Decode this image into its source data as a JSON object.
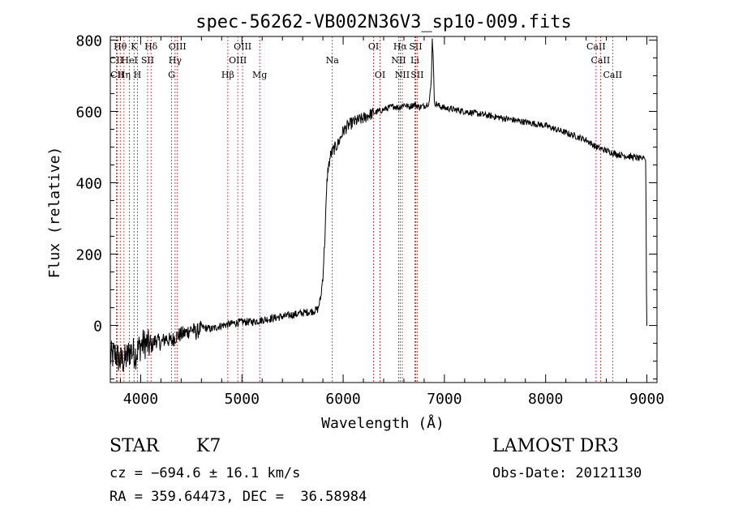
{
  "chart_data": {
    "type": "line",
    "title": "spec-56262-VB002N36V3_sp10-009.fits",
    "xlabel": "Wavelength (Å)",
    "ylabel": "Flux (relative)",
    "xlim": [
      3700,
      9100
    ],
    "ylim": [
      -160,
      810
    ],
    "xticks": [
      4000,
      5000,
      6000,
      7000,
      8000,
      9000
    ],
    "yticks": [
      0,
      200,
      400,
      600,
      800
    ],
    "grid": false,
    "series": [
      {
        "name": "flux",
        "x": [
          3700,
          3750,
          3800,
          3850,
          3900,
          3950,
          4000,
          4050,
          4100,
          4150,
          4200,
          4250,
          4300,
          4350,
          4400,
          4450,
          4500,
          4550,
          4600,
          4700,
          4800,
          4900,
          5000,
          5100,
          5200,
          5300,
          5400,
          5500,
          5600,
          5700,
          5750,
          5780,
          5800,
          5820,
          5840,
          5850,
          5860,
          5870,
          5880,
          5900,
          5950,
          6000,
          6050,
          6100,
          6150,
          6200,
          6250,
          6300,
          6350,
          6400,
          6450,
          6500,
          6550,
          6600,
          6650,
          6700,
          6750,
          6800,
          6850,
          6870,
          6880,
          6890,
          6900,
          6950,
          7000,
          7100,
          7200,
          7300,
          7400,
          7500,
          7600,
          7700,
          7800,
          7900,
          8000,
          8100,
          8200,
          8300,
          8400,
          8500,
          8600,
          8700,
          8800,
          8900,
          8950,
          8970,
          8990,
          8995,
          9000
        ],
        "y": [
          -90,
          -80,
          -100,
          -95,
          -70,
          -80,
          -55,
          -50,
          -60,
          -40,
          -50,
          -35,
          -45,
          -30,
          -25,
          -20,
          -10,
          -20,
          -5,
          -10,
          0,
          5,
          10,
          10,
          15,
          20,
          25,
          30,
          35,
          40,
          45,
          80,
          140,
          250,
          400,
          440,
          450,
          470,
          480,
          490,
          510,
          545,
          560,
          570,
          575,
          580,
          590,
          595,
          600,
          605,
          610,
          615,
          610,
          620,
          612,
          620,
          612,
          615,
          625,
          680,
          800,
          760,
          625,
          615,
          610,
          605,
          600,
          595,
          590,
          585,
          580,
          575,
          570,
          565,
          560,
          550,
          540,
          530,
          520,
          500,
          490,
          480,
          475,
          470,
          465,
          475,
          460,
          120,
          0
        ]
      }
    ],
    "lines": [
      {
        "label": "Hθ",
        "x": 3798,
        "row": 0
      },
      {
        "label": "K",
        "x": 3934,
        "row": 0
      },
      {
        "label": "Hδ",
        "x": 4102,
        "row": 0
      },
      {
        "label": "OIII",
        "x": 4363,
        "row": 0
      },
      {
        "label": "OIII",
        "x": 5007,
        "row": 0
      },
      {
        "label": "OI",
        "x": 6300,
        "row": 0
      },
      {
        "label": "Hα",
        "x": 6563,
        "row": 0
      },
      {
        "label": "SII",
        "x": 6716,
        "row": 0
      },
      {
        "label": "CaII",
        "x": 8498,
        "row": 0
      },
      {
        "label": "CII",
        "x": 3760,
        "row": 1
      },
      {
        "label": "HeI",
        "x": 3889,
        "row": 1
      },
      {
        "label": "SII",
        "x": 4068,
        "row": 1
      },
      {
        "label": "Hγ",
        "x": 4340,
        "row": 1
      },
      {
        "label": "OIII",
        "x": 4959,
        "row": 1
      },
      {
        "label": "Na",
        "x": 5893,
        "row": 1
      },
      {
        "label": "NII",
        "x": 6548,
        "row": 1
      },
      {
        "label": "Li",
        "x": 6708,
        "row": 1
      },
      {
        "label": "CaII",
        "x": 8542,
        "row": 1
      },
      {
        "label": "CII",
        "x": 3770,
        "row": 2
      },
      {
        "label": "Hη",
        "x": 3835,
        "row": 2
      },
      {
        "label": "H",
        "x": 3968,
        "row": 2
      },
      {
        "label": "G",
        "x": 4305,
        "row": 2
      },
      {
        "label": "Hβ",
        "x": 4861,
        "row": 2
      },
      {
        "label": "Mg",
        "x": 5175,
        "row": 2
      },
      {
        "label": "OI",
        "x": 6364,
        "row": 2
      },
      {
        "label": "NII",
        "x": 6584,
        "row": 2
      },
      {
        "label": "SII",
        "x": 6731,
        "row": 2
      },
      {
        "label": "CaII",
        "x": 8662,
        "row": 2
      }
    ]
  },
  "info": {
    "class": "STAR",
    "subclass": "K7",
    "survey": "LAMOST DR3",
    "cz": "cz = −694.6 ± 16.1 km/s",
    "obs_date": "Obs-Date: 20121130",
    "coords": "RA = 359.64473, DEC =  36.58984"
  }
}
